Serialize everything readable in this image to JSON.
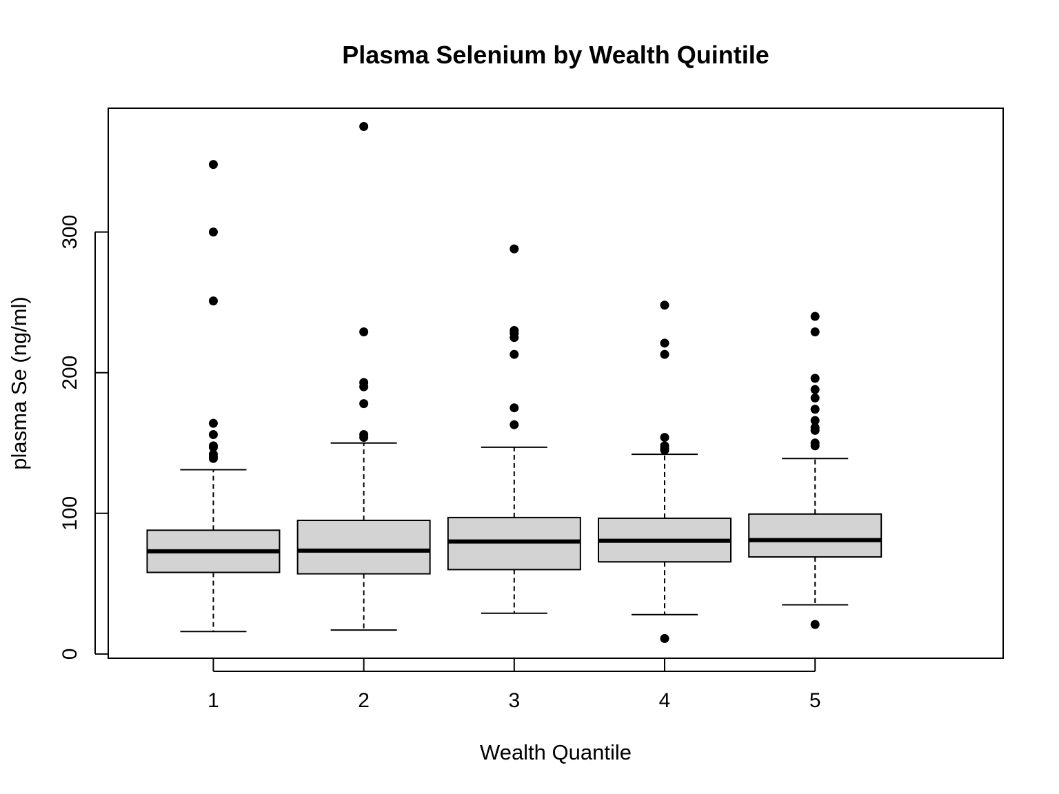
{
  "chart_data": {
    "type": "boxplot",
    "title": "Plasma Selenium by Wealth Quintile",
    "xlabel": "Wealth Quantile",
    "ylabel": "plasma Se (ng/ml)",
    "ylim": [
      -3,
      388
    ],
    "yticks": [
      0,
      100,
      200,
      300
    ],
    "grid": false,
    "legend": "none",
    "box_fill": "#d3d3d3",
    "line_color": "#000000",
    "categories": [
      "1",
      "2",
      "3",
      "4",
      "5"
    ],
    "boxes": [
      {
        "category": "1",
        "whisker_low": 16,
        "q1": 58,
        "median": 73,
        "q3": 88,
        "whisker_high": 131,
        "outliers": [
          348,
          300,
          251,
          164,
          156,
          148,
          147,
          142,
          140,
          139
        ]
      },
      {
        "category": "2",
        "whisker_low": 17,
        "q1": 57,
        "median": 73.5,
        "q3": 95,
        "whisker_high": 150,
        "outliers": [
          375,
          229,
          193,
          190,
          178,
          156,
          154
        ]
      },
      {
        "category": "3",
        "whisker_low": 29,
        "q1": 60,
        "median": 80,
        "q3": 97,
        "whisker_high": 147,
        "outliers": [
          288,
          230,
          228,
          225,
          213,
          175,
          163
        ]
      },
      {
        "category": "4",
        "whisker_low": 28,
        "q1": 65.5,
        "median": 80.5,
        "q3": 96.5,
        "whisker_high": 142,
        "outliers": [
          248,
          221,
          213,
          154,
          148,
          146,
          145,
          11
        ]
      },
      {
        "category": "5",
        "whisker_low": 35,
        "q1": 69,
        "median": 81,
        "q3": 99.5,
        "whisker_high": 139,
        "outliers": [
          240,
          229,
          196,
          188,
          182,
          174,
          166,
          161,
          159,
          150,
          148,
          21
        ]
      }
    ]
  }
}
